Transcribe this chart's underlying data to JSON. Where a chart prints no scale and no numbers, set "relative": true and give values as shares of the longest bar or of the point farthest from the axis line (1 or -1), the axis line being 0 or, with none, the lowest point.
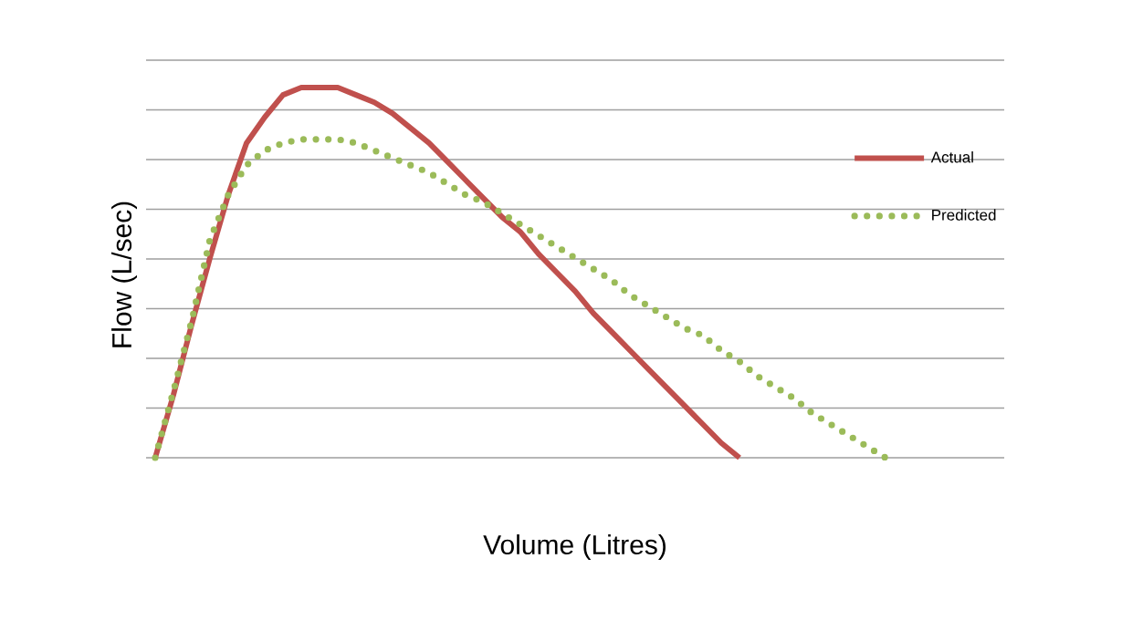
{
  "chart_data": {
    "type": "line",
    "relative": true,
    "xlabel": "Volume (Litres)",
    "ylabel": "Flow (L/sec)",
    "grid": "y",
    "legend": "right",
    "categories": [
      null,
      null,
      null,
      null,
      null,
      null,
      null,
      null,
      null,
      null,
      null,
      null,
      null,
      null,
      null,
      null,
      null,
      null,
      null,
      null,
      null,
      null,
      null,
      null,
      null,
      null,
      null,
      null,
      null,
      null,
      null,
      null,
      null,
      null,
      null,
      null,
      null,
      null,
      null,
      null,
      null
    ],
    "series": [
      {
        "name": "Actual",
        "color": "#c0504d",
        "line_style": "solid",
        "values": [
          0,
          0.17,
          0.36,
          0.54,
          0.71,
          0.85,
          0.92,
          0.98,
          1.0,
          1.0,
          1.0,
          0.98,
          0.96,
          0.93,
          0.89,
          0.85,
          0.8,
          0.75,
          0.7,
          0.65,
          0.61,
          0.55,
          0.5,
          0.45,
          0.39,
          0.34,
          0.29,
          0.24,
          0.19,
          0.14,
          0.09,
          0.04,
          0,
          null,
          null,
          null,
          null,
          null,
          null,
          null,
          null
        ]
      },
      {
        "name": "Predicted",
        "color": "#9bbb59",
        "line_style": "dotted",
        "values": [
          0,
          0.18,
          0.37,
          0.59,
          0.71,
          0.79,
          0.83,
          0.85,
          0.86,
          0.86,
          0.86,
          0.85,
          0.83,
          0.81,
          0.79,
          0.77,
          0.74,
          0.71,
          0.69,
          0.66,
          0.63,
          0.6,
          0.57,
          0.54,
          0.51,
          0.48,
          0.44,
          0.41,
          0.38,
          0.35,
          0.33,
          0.29,
          0.26,
          0.22,
          0.19,
          0.16,
          0.12,
          0.09,
          0.06,
          0.03,
          0
        ]
      }
    ]
  }
}
